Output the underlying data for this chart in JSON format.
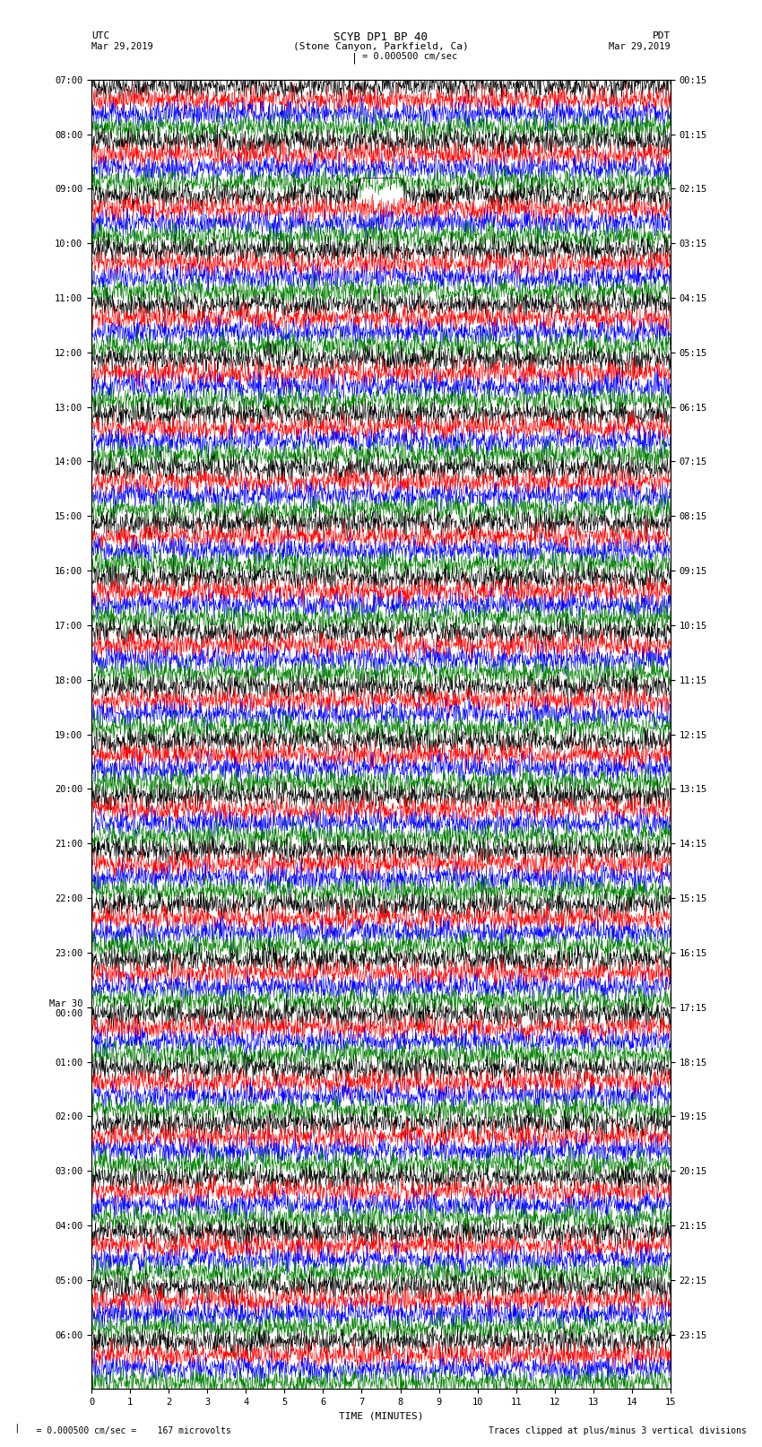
{
  "title_line1": "SCYB DP1 BP 40",
  "title_line2": "(Stone Canyon, Parkfield, Ca)",
  "scale_label": "  = 0.000500 cm/sec =    167 microvolts",
  "traces_note": "Traces clipped at plus/minus 3 vertical divisions",
  "utc_label": "UTC",
  "utc_date": "Mar 29,2019",
  "pdt_label": "PDT",
  "pdt_date": "Mar 29,2019",
  "xlabel": "TIME (MINUTES)",
  "left_times": [
    "07:00",
    "08:00",
    "09:00",
    "10:00",
    "11:00",
    "12:00",
    "13:00",
    "14:00",
    "15:00",
    "16:00",
    "17:00",
    "18:00",
    "19:00",
    "20:00",
    "21:00",
    "22:00",
    "23:00",
    "Mar 30\n00:00",
    "01:00",
    "02:00",
    "03:00",
    "04:00",
    "05:00",
    "06:00"
  ],
  "right_times": [
    "00:15",
    "01:15",
    "02:15",
    "03:15",
    "04:15",
    "05:15",
    "06:15",
    "07:15",
    "08:15",
    "09:15",
    "10:15",
    "11:15",
    "12:15",
    "13:15",
    "14:15",
    "15:15",
    "16:15",
    "17:15",
    "18:15",
    "19:15",
    "20:15",
    "21:15",
    "22:15",
    "23:15"
  ],
  "colors": [
    "black",
    "red",
    "blue",
    "green"
  ],
  "n_hours": 24,
  "traces_per_hour": 4,
  "xmin": 0,
  "xmax": 15,
  "noise_amplitude": 0.12,
  "earthquake_hour": 2,
  "earthquake_trace": 0,
  "earthquake_minute": 7.5,
  "earthquake_amplitude": 3.0,
  "bg_color": "white",
  "spine_color": "black",
  "font_size_title": 9,
  "font_size_labels": 8,
  "font_size_ticks": 7.5,
  "font_size_bottom": 7
}
